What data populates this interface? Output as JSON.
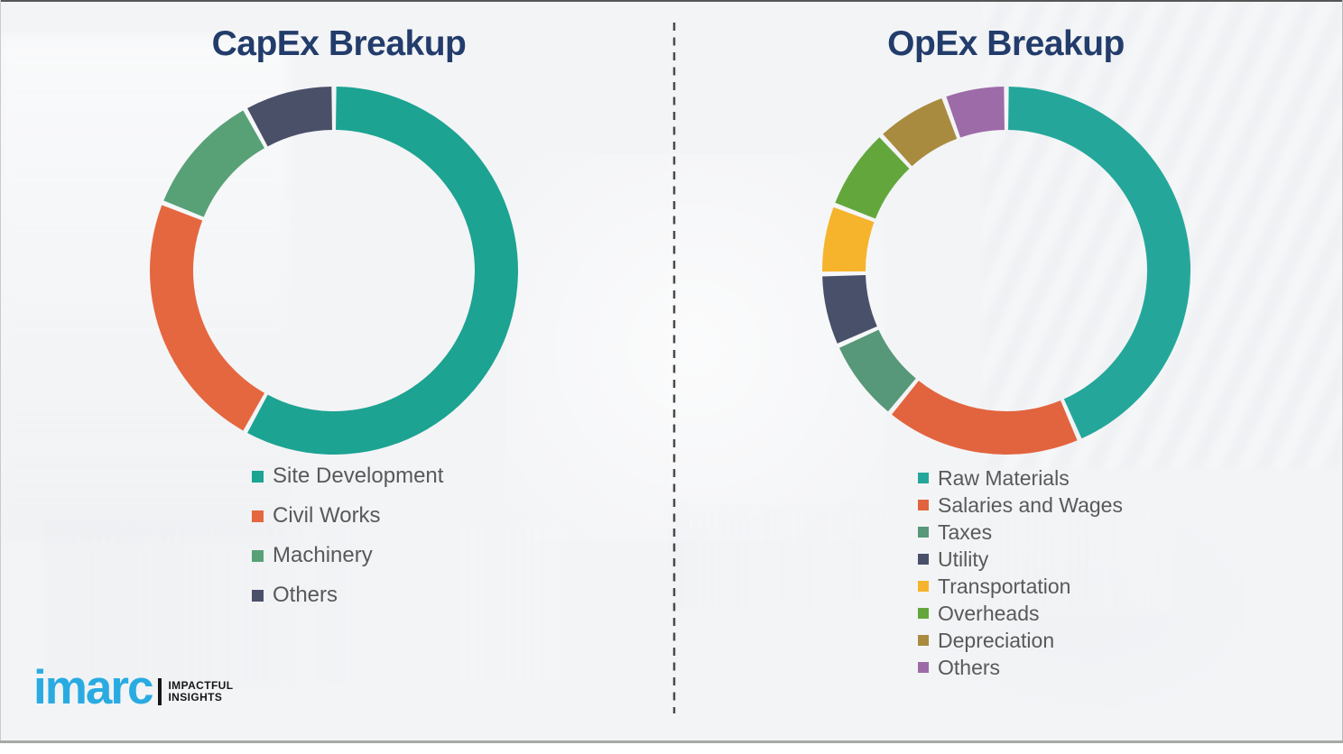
{
  "page": {
    "background_color": "#f3f4f6",
    "divider_color": "#4a4a4a",
    "divider_style": "dashed",
    "bottom_rule_color": "#a8a8a8",
    "title_color": "#223C6B",
    "legend_text_color": "#595959"
  },
  "chart_data": [
    {
      "type": "pie",
      "subtype": "donut",
      "title": "CapEx Breakup",
      "categories": [
        "Site Development",
        "Civil Works",
        "Machinery",
        "Others"
      ],
      "values": [
        58,
        23,
        11,
        8
      ],
      "colors": [
        "#1CA392",
        "#E56740",
        "#58A177",
        "#4B5069"
      ],
      "data_labels_shown": false,
      "legend_position": "below-chart-left",
      "start_angle_deg": 0,
      "direction": "clockwise"
    },
    {
      "type": "pie",
      "subtype": "donut",
      "title": "OpEx Breakup",
      "categories": [
        "Raw Materials",
        "Salaries and Wages",
        "Taxes",
        "Utility",
        "Transportation",
        "Overheads",
        "Depreciation",
        "Others"
      ],
      "values": [
        43.5,
        17.4,
        7.4,
        6.4,
        6.1,
        7.3,
        6.4,
        5.5
      ],
      "colors": [
        "#24A79A",
        "#E2643E",
        "#569879",
        "#48506A",
        "#F6B42C",
        "#63A73C",
        "#A98B40",
        "#9D6BA8"
      ],
      "data_labels_shown": false,
      "legend_position": "below-chart-left",
      "start_angle_deg": 0,
      "direction": "clockwise"
    }
  ],
  "logo": {
    "brand": "imarc",
    "brand_color": "#29ABE2",
    "tagline_line1": "IMPACTFUL",
    "tagline_line2": "INSIGHTS",
    "tagline_color": "#161616"
  }
}
